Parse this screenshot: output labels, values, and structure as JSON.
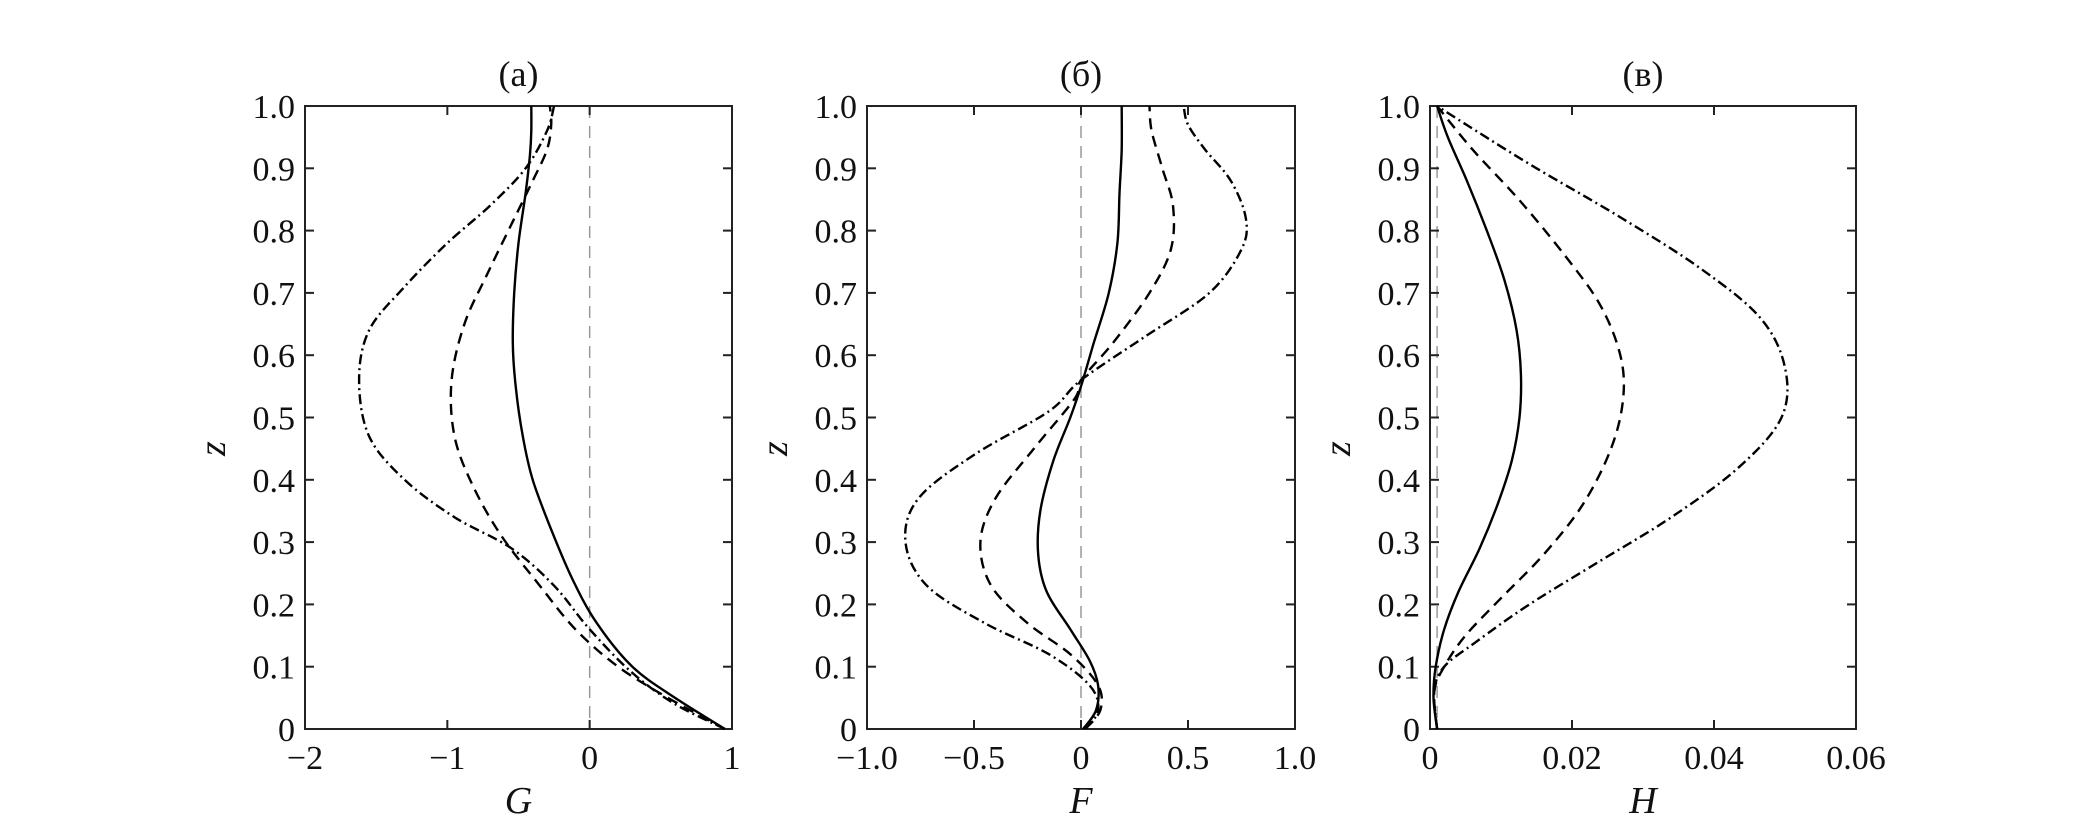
{
  "chart_data": [
    {
      "type": "line",
      "title": "(а)",
      "xlabel": "G",
      "ylabel": "z",
      "xlim": [
        -2,
        1
      ],
      "ylim": [
        0,
        1
      ],
      "xticks": [
        -2,
        -1,
        0,
        1
      ],
      "xtick_labels": [
        "−2",
        "−1",
        "0",
        "1"
      ],
      "yticks": [
        0,
        0.1,
        0.2,
        0.3,
        0.4,
        0.5,
        0.6,
        0.7,
        0.8,
        0.9,
        1.0
      ],
      "ytick_labels": [
        "0",
        "0.1",
        "0.2",
        "0.3",
        "0.4",
        "0.5",
        "0.6",
        "0.7",
        "0.8",
        "0.9",
        "1.0"
      ],
      "reference_x": 0,
      "series": [
        {
          "style": "solid",
          "x": [
            0.95,
            0.6,
            0.3,
            0.05,
            -0.12,
            -0.27,
            -0.4,
            -0.47,
            -0.52,
            -0.54,
            -0.53,
            -0.5,
            -0.45,
            -0.42,
            -0.41,
            -0.41
          ],
          "y": [
            0.0,
            0.05,
            0.1,
            0.17,
            0.24,
            0.32,
            0.4,
            0.47,
            0.55,
            0.62,
            0.7,
            0.78,
            0.86,
            0.92,
            0.96,
            1.0
          ]
        },
        {
          "style": "dashed",
          "x": [
            0.95,
            0.55,
            0.2,
            -0.1,
            -0.35,
            -0.62,
            -0.82,
            -0.95,
            -0.97,
            -0.88,
            -0.72,
            -0.55,
            -0.4,
            -0.3,
            -0.27,
            -0.28
          ],
          "y": [
            0.0,
            0.05,
            0.1,
            0.16,
            0.23,
            0.31,
            0.39,
            0.47,
            0.56,
            0.65,
            0.73,
            0.81,
            0.88,
            0.93,
            0.97,
            1.0
          ]
        },
        {
          "style": "dashdot",
          "x": [
            0.95,
            0.6,
            0.3,
            0.0,
            -0.25,
            -0.55,
            -0.95,
            -1.3,
            -1.55,
            -1.62,
            -1.55,
            -1.3,
            -1.0,
            -0.7,
            -0.45,
            -0.3,
            -0.25
          ],
          "y": [
            0.0,
            0.04,
            0.09,
            0.16,
            0.23,
            0.29,
            0.34,
            0.4,
            0.47,
            0.56,
            0.64,
            0.71,
            0.78,
            0.84,
            0.9,
            0.96,
            1.0
          ]
        }
      ]
    },
    {
      "type": "line",
      "title": "(б)",
      "xlabel": "F",
      "ylabel": "z",
      "xlim": [
        -1,
        1
      ],
      "ylim": [
        0,
        1
      ],
      "xticks": [
        -1,
        -0.5,
        0,
        0.5,
        1
      ],
      "xtick_labels": [
        "−1.0",
        "−0.5",
        "0",
        "0.5",
        "1.0"
      ],
      "yticks": [
        0,
        0.1,
        0.2,
        0.3,
        0.4,
        0.5,
        0.6,
        0.7,
        0.8,
        0.9,
        1.0
      ],
      "ytick_labels": [
        "0",
        "0.1",
        "0.2",
        "0.3",
        "0.4",
        "0.5",
        "0.6",
        "0.7",
        "0.8",
        "0.9",
        "1.0"
      ],
      "reference_x": 0,
      "series": [
        {
          "style": "solid",
          "x": [
            0.01,
            0.07,
            0.08,
            0.04,
            -0.05,
            -0.16,
            -0.2,
            -0.19,
            -0.13,
            -0.05,
            0.0,
            0.06,
            0.13,
            0.17,
            0.18,
            0.19,
            0.19
          ],
          "y": [
            0.0,
            0.03,
            0.07,
            0.11,
            0.16,
            0.22,
            0.28,
            0.35,
            0.43,
            0.5,
            0.55,
            0.62,
            0.7,
            0.78,
            0.86,
            0.93,
            1.0
          ]
        },
        {
          "style": "dashed",
          "x": [
            0.02,
            0.09,
            0.08,
            -0.05,
            -0.25,
            -0.42,
            -0.47,
            -0.4,
            -0.22,
            -0.03,
            0.0,
            0.15,
            0.32,
            0.42,
            0.43,
            0.38,
            0.33,
            0.32
          ],
          "y": [
            0.0,
            0.03,
            0.07,
            0.12,
            0.17,
            0.23,
            0.3,
            0.37,
            0.45,
            0.53,
            0.56,
            0.62,
            0.7,
            0.77,
            0.84,
            0.9,
            0.96,
            1.0
          ]
        },
        {
          "style": "dashdot",
          "x": [
            0.02,
            0.08,
            0.04,
            -0.15,
            -0.45,
            -0.72,
            -0.82,
            -0.76,
            -0.5,
            -0.15,
            0.0,
            0.3,
            0.6,
            0.75,
            0.77,
            0.7,
            0.58,
            0.5,
            0.48
          ],
          "y": [
            0.0,
            0.03,
            0.07,
            0.12,
            0.17,
            0.23,
            0.3,
            0.37,
            0.44,
            0.51,
            0.56,
            0.63,
            0.7,
            0.77,
            0.82,
            0.88,
            0.93,
            0.97,
            1.0
          ]
        }
      ]
    },
    {
      "type": "line",
      "title": "(в)",
      "xlabel": "H",
      "ylabel": "z",
      "xlim": [
        0,
        0.06
      ],
      "ylim": [
        0,
        1
      ],
      "xticks": [
        0,
        0.02,
        0.04,
        0.06
      ],
      "xtick_labels": [
        "0",
        "0.02",
        "0.04",
        "0.06"
      ],
      "yticks": [
        0,
        0.1,
        0.2,
        0.3,
        0.4,
        0.5,
        0.6,
        0.7,
        0.8,
        0.9,
        1.0
      ],
      "ytick_labels": [
        "0",
        "0.1",
        "0.2",
        "0.3",
        "0.4",
        "0.5",
        "0.6",
        "0.7",
        "0.8",
        "0.9",
        "1.0"
      ],
      "reference_x": 0.001,
      "series": [
        {
          "style": "solid",
          "x": [
            0.001,
            0.0005,
            0.0008,
            0.002,
            0.004,
            0.007,
            0.0095,
            0.0115,
            0.0126,
            0.0128,
            0.0122,
            0.0105,
            0.008,
            0.0052,
            0.0025,
            0.001
          ],
          "y": [
            0.0,
            0.05,
            0.1,
            0.16,
            0.22,
            0.29,
            0.36,
            0.43,
            0.5,
            0.57,
            0.64,
            0.72,
            0.8,
            0.88,
            0.95,
            1.0
          ]
        },
        {
          "style": "dashed",
          "x": [
            0.001,
            0.0006,
            0.002,
            0.005,
            0.01,
            0.016,
            0.0215,
            0.0255,
            0.0272,
            0.0268,
            0.024,
            0.019,
            0.0125,
            0.006,
            0.001
          ],
          "y": [
            0.0,
            0.06,
            0.1,
            0.15,
            0.21,
            0.28,
            0.36,
            0.45,
            0.53,
            0.6,
            0.68,
            0.76,
            0.85,
            0.93,
            1.0
          ]
        },
        {
          "style": "dashdot",
          "x": [
            0.001,
            0.0006,
            0.002,
            0.0065,
            0.014,
            0.024,
            0.034,
            0.0435,
            0.0495,
            0.05,
            0.0465,
            0.038,
            0.027,
            0.015,
            0.0065,
            0.001
          ],
          "y": [
            0.0,
            0.06,
            0.1,
            0.14,
            0.2,
            0.27,
            0.34,
            0.42,
            0.5,
            0.58,
            0.66,
            0.74,
            0.82,
            0.9,
            0.96,
            1.0
          ]
        }
      ]
    }
  ]
}
